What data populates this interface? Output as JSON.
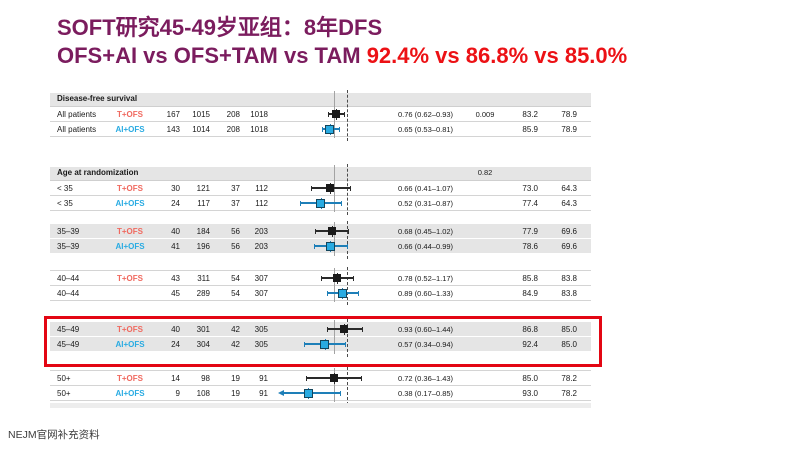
{
  "title": {
    "line1": "SOFT研究45-49岁亚组：8年DFS",
    "line2_purple": "OFS+AI vs OFS+TAM vs TAM ",
    "line2_red": "92.4% vs  86.8% vs 85.0%"
  },
  "footer": {
    "source": "NEJM官网补充资料"
  },
  "colors": {
    "title_purple": "#7b1c5e",
    "title_red": "#ec1115",
    "t_ofs_label": "#f0695f",
    "ai_ofs_label": "#29abe2",
    "marker_black": "#1a1a1a",
    "marker_blue": "#29abe2",
    "whisker_black": "#2a2a2a",
    "whisker_blue": "#1e7fb8",
    "highlight_red": "#e30613",
    "stripe_gray": "#e5e5e5"
  },
  "chart_data": {
    "type": "scatter",
    "subtype": "forest-plot",
    "x_scale": "log(hazard ratio)",
    "reference_line": 1.0,
    "overall_effect_line": 0.74,
    "legend": "black square = T+OFS vs TAM, blue square = AI+OFS vs TAM",
    "sections": [
      {
        "label": "Disease-free survival",
        "p_interaction": "",
        "stripe": "white",
        "rows": [
          {
            "subgroup": "All patients",
            "treatment": "T+OFS",
            "events_a": "167",
            "n_a": "1015",
            "events_b": "208",
            "n_b": "1018",
            "hr": 0.76,
            "ci_low": 0.62,
            "ci_high": 0.93,
            "hr_text": "0.76 (0.62–0.93)",
            "p": "0.009",
            "pct_a": "83.2",
            "pct_b": "78.9",
            "marker": "black"
          },
          {
            "subgroup": "All patients",
            "treatment": "AI+OFS",
            "events_a": "143",
            "n_a": "1014",
            "events_b": "208",
            "n_b": "1018",
            "hr": 0.65,
            "ci_low": 0.53,
            "ci_high": 0.81,
            "hr_text": "0.65 (0.53–0.81)",
            "p": "",
            "pct_a": "85.9",
            "pct_b": "78.9",
            "marker": "blue"
          }
        ]
      },
      {
        "label": "Age at randomization",
        "p_interaction": "0.82",
        "stripe": "white",
        "rows": [
          {
            "subgroup": "< 35",
            "treatment": "T+OFS",
            "events_a": "30",
            "n_a": "121",
            "events_b": "37",
            "n_b": "112",
            "hr": 0.66,
            "ci_low": 0.41,
            "ci_high": 1.07,
            "hr_text": "0.66 (0.41–1.07)",
            "p": "",
            "pct_a": "73.0",
            "pct_b": "64.3",
            "marker": "black"
          },
          {
            "subgroup": "< 35",
            "treatment": "AI+OFS",
            "events_a": "24",
            "n_a": "117",
            "events_b": "37",
            "n_b": "112",
            "hr": 0.52,
            "ci_low": 0.31,
            "ci_high": 0.87,
            "hr_text": "0.52 (0.31–0.87)",
            "p": "",
            "pct_a": "77.4",
            "pct_b": "64.3",
            "marker": "blue"
          }
        ]
      },
      {
        "label": null,
        "p_interaction": "",
        "stripe": "gray",
        "rows": [
          {
            "subgroup": "35–39",
            "treatment": "T+OFS",
            "events_a": "40",
            "n_a": "184",
            "events_b": "56",
            "n_b": "203",
            "hr": 0.68,
            "ci_low": 0.45,
            "ci_high": 1.02,
            "hr_text": "0.68 (0.45–1.02)",
            "p": "",
            "pct_a": "77.9",
            "pct_b": "69.6",
            "marker": "black"
          },
          {
            "subgroup": "35–39",
            "treatment": "AI+OFS",
            "events_a": "41",
            "n_a": "196",
            "events_b": "56",
            "n_b": "203",
            "hr": 0.66,
            "ci_low": 0.44,
            "ci_high": 0.99,
            "hr_text": "0.66 (0.44–0.99)",
            "p": "",
            "pct_a": "78.6",
            "pct_b": "69.6",
            "marker": "blue"
          }
        ]
      },
      {
        "label": null,
        "p_interaction": "",
        "stripe": "white",
        "rows": [
          {
            "subgroup": "40–44",
            "treatment": "T+OFS",
            "events_a": "43",
            "n_a": "311",
            "events_b": "54",
            "n_b": "307",
            "hr": 0.78,
            "ci_low": 0.52,
            "ci_high": 1.17,
            "hr_text": "0.78 (0.52–1.17)",
            "p": "",
            "pct_a": "85.8",
            "pct_b": "83.8",
            "marker": "black"
          },
          {
            "subgroup": "40–44",
            "treatment": "",
            "events_a": "45",
            "n_a": "289",
            "events_b": "54",
            "n_b": "307",
            "hr": 0.89,
            "ci_low": 0.6,
            "ci_high": 1.33,
            "hr_text": "0.89 (0.60–1.33)",
            "p": "",
            "pct_a": "84.9",
            "pct_b": "83.8",
            "marker": "blue"
          }
        ]
      },
      {
        "label": null,
        "p_interaction": "",
        "stripe": "gray",
        "highlighted": true,
        "rows": [
          {
            "subgroup": "45–49",
            "treatment": "T+OFS",
            "events_a": "40",
            "n_a": "301",
            "events_b": "42",
            "n_b": "305",
            "hr": 0.93,
            "ci_low": 0.6,
            "ci_high": 1.44,
            "hr_text": "0.93 (0.60–1.44)",
            "p": "",
            "pct_a": "86.8",
            "pct_b": "85.0",
            "marker": "black"
          },
          {
            "subgroup": "45–49",
            "treatment": "AI+OFS",
            "events_a": "24",
            "n_a": "304",
            "events_b": "42",
            "n_b": "305",
            "hr": 0.57,
            "ci_low": 0.34,
            "ci_high": 0.94,
            "hr_text": "0.57 (0.34–0.94)",
            "p": "",
            "pct_a": "92.4",
            "pct_b": "85.0",
            "marker": "blue"
          }
        ]
      },
      {
        "label": null,
        "p_interaction": "",
        "stripe": "white",
        "rows": [
          {
            "subgroup": "50+",
            "treatment": "T+OFS",
            "events_a": "14",
            "n_a": "98",
            "events_b": "19",
            "n_b": "91",
            "hr": 0.72,
            "ci_low": 0.36,
            "ci_high": 1.43,
            "hr_text": "0.72 (0.36–1.43)",
            "p": "",
            "pct_a": "85.0",
            "pct_b": "78.2",
            "marker": "black"
          },
          {
            "subgroup": "50+",
            "treatment": "AI+OFS",
            "events_a": "9",
            "n_a": "108",
            "events_b": "19",
            "n_b": "91",
            "hr": 0.38,
            "ci_low": 0.17,
            "ci_high": 0.85,
            "hr_text": "0.38 (0.17–0.85)",
            "p": "",
            "pct_a": "93.0",
            "pct_b": "78.2",
            "marker": "blue",
            "arrow_left": true
          }
        ]
      }
    ]
  }
}
